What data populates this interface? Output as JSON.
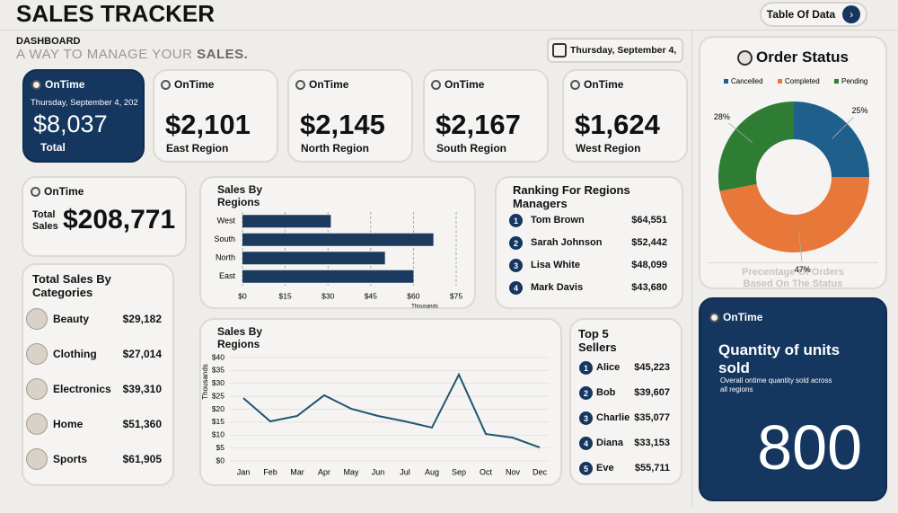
{
  "header": {
    "title": "SALES TRACKER",
    "button": "Table Of Data",
    "section": "DASHBOARD",
    "tagline": "A WAY TO MANAGE YOUR",
    "tagline_emphasis": "SALES.",
    "date": "Thursday, September 4,"
  },
  "total_card": {
    "status": "OnTime",
    "date": "Thursday, September 4, 202",
    "value": "$8,037",
    "label": "Total"
  },
  "region_cards": [
    {
      "status": "OnTime",
      "value": "$2,101",
      "label": "East Region"
    },
    {
      "status": "OnTime",
      "value": "$2,145",
      "label": "North Region"
    },
    {
      "status": "OnTime",
      "value": "$2,167",
      "label": "South Region"
    },
    {
      "status": "OnTime",
      "value": "$1,624",
      "label": "West Region"
    }
  ],
  "total_sales_card": {
    "status": "OnTime",
    "label_line1": "Total",
    "label_line2": "Sales",
    "value": "$208,771"
  },
  "categories_card": {
    "title": "Total Sales By Categories",
    "items": [
      {
        "name": "Beauty",
        "value": "$29,182"
      },
      {
        "name": "Clothing",
        "value": "$27,014"
      },
      {
        "name": "Electronics",
        "value": "$39,310"
      },
      {
        "name": "Home",
        "value": "$51,360"
      },
      {
        "name": "Sports",
        "value": "$61,905"
      }
    ]
  },
  "ranking_card": {
    "title": "Ranking For Regions Managers",
    "items": [
      {
        "rank": 1,
        "name": "Tom Brown",
        "value": "$64,551"
      },
      {
        "rank": 2,
        "name": "Sarah Johnson",
        "value": "$52,442"
      },
      {
        "rank": 3,
        "name": "Lisa White",
        "value": "$48,099"
      },
      {
        "rank": 4,
        "name": "Mark Davis",
        "value": "$43,680"
      }
    ]
  },
  "sellers_card": {
    "title": "Top 5 Sellers",
    "items": [
      {
        "rank": 1,
        "name": "Alice",
        "value": "$45,223"
      },
      {
        "rank": 2,
        "name": "Bob",
        "value": "$39,607"
      },
      {
        "rank": 3,
        "name": "Charlie",
        "value": "$35,077"
      },
      {
        "rank": 4,
        "name": "Diana",
        "value": "$33,153"
      },
      {
        "rank": 5,
        "name": "Eve",
        "value": "$55,711"
      }
    ]
  },
  "units_card": {
    "status": "OnTime",
    "title": "Quantity of units sold",
    "subtitle": "Overall ontime quantity sold across all regions",
    "value": 800
  },
  "chart_data": [
    {
      "type": "bar",
      "orientation": "horizontal",
      "title": "Sales By Regions",
      "categories": [
        "West",
        "South",
        "North",
        "East"
      ],
      "values": [
        31,
        67,
        50,
        60
      ],
      "color": "#1b3a5e",
      "xlim": [
        0,
        75
      ],
      "xticks": [
        {
          "value": 0,
          "label": "$0"
        },
        {
          "value": 15,
          "label": "$15"
        },
        {
          "value": 30,
          "label": "$30"
        },
        {
          "value": 45,
          "label": "$45"
        },
        {
          "value": 60,
          "label": "$60"
        },
        {
          "value": 75,
          "label": "$75"
        }
      ],
      "xlabel": "Thousands",
      "grid": true
    },
    {
      "type": "line",
      "title": "Sales By Regions",
      "ylabel": "Thousands",
      "categories": [
        "Jan",
        "Feb",
        "Mar",
        "Apr",
        "May",
        "Jun",
        "Jul",
        "Aug",
        "Sep",
        "Oct",
        "Nov",
        "Dec"
      ],
      "values": [
        24.3,
        15.3,
        17.4,
        25.4,
        20.2,
        17.4,
        15.3,
        12.9,
        33.4,
        10.4,
        9,
        5.2
      ],
      "color": "#1f5570",
      "ylim": [
        0,
        40
      ],
      "yticks": [
        {
          "value": 0,
          "label": "$0"
        },
        {
          "value": 5,
          "label": "$5"
        },
        {
          "value": 10,
          "label": "$10"
        },
        {
          "value": 15,
          "label": "$15"
        },
        {
          "value": 20,
          "label": "$20"
        },
        {
          "value": 25,
          "label": "$25"
        },
        {
          "value": 30,
          "label": "$30"
        },
        {
          "value": 35,
          "label": "$35"
        },
        {
          "value": 40,
          "label": "$40"
        }
      ],
      "grid": true
    },
    {
      "type": "pie",
      "donut": true,
      "title": "Order Status",
      "categories": [
        "Cancelled",
        "Completed",
        "Pending"
      ],
      "values": [
        25,
        47,
        28
      ],
      "value_labels": [
        "25%",
        "47%",
        "28%"
      ],
      "colors": [
        "#1f5f8b",
        "#e8773a",
        "#2e7d32"
      ],
      "legend": "top",
      "caption": "Precentage Of Orders Based On The Status"
    }
  ]
}
